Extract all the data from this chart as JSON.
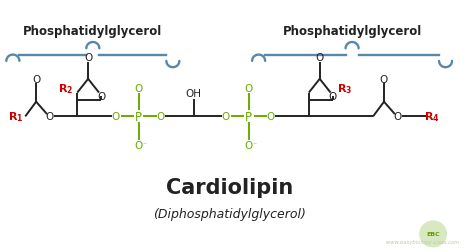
{
  "title": "Cardiolipin",
  "subtitle": "(Diphosphatidylglycerol)",
  "label_left": "Phosphatidylglycerol",
  "label_right": "Phosphatidylglycerol",
  "bg_color": "#ffffff",
  "black": "#222222",
  "red": "#cc0000",
  "green": "#6aaa00",
  "brace_color": "#5588aa",
  "title_fontsize": 15,
  "subtitle_fontsize": 9,
  "label_fontsize": 8.5,
  "struct_fontsize": 8.0,
  "lw": 1.4
}
